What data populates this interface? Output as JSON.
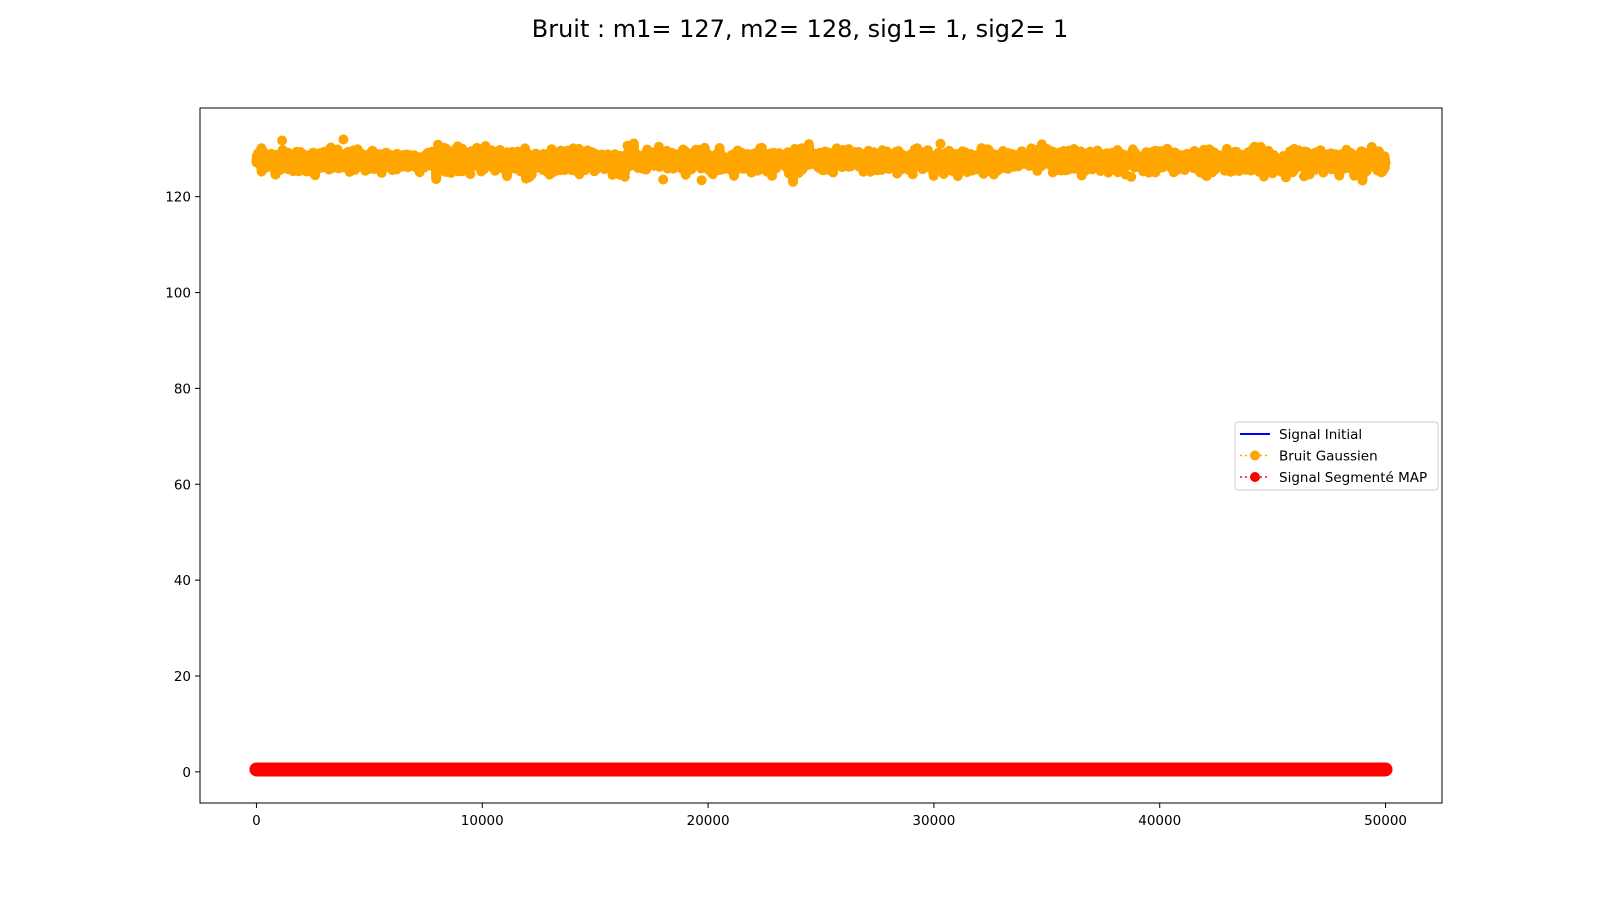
{
  "chart_data": {
    "type": "scatter",
    "title": "Bruit : m1= 127, m2= 128, sig1= 1, sig2= 1",
    "xlabel": "",
    "ylabel": "",
    "xlim": [
      -2500,
      52500
    ],
    "ylim": [
      -6.5,
      138.5
    ],
    "xticks": [
      0,
      10000,
      20000,
      30000,
      40000,
      50000
    ],
    "xtick_labels": [
      "0",
      "10000",
      "20000",
      "30000",
      "40000",
      "50000"
    ],
    "yticks": [
      0,
      20,
      40,
      60,
      80,
      100,
      120
    ],
    "ytick_labels": [
      "0",
      "20",
      "40",
      "60",
      "80",
      "100",
      "120"
    ],
    "grid": false,
    "legend_position": "center-right",
    "series": [
      {
        "name": "Signal Initial",
        "kind": "line",
        "color": "#0000ff",
        "x_range": [
          0,
          50000
        ],
        "value": 0
      },
      {
        "name": "Bruit Gaussien",
        "kind": "dotted-line-markers",
        "color": "#ffa500",
        "x_range": [
          0,
          50000
        ],
        "mean": 127.5,
        "min": 123,
        "max": 132
      },
      {
        "name": "Signal Segmenté MAP",
        "kind": "dotted-line-markers",
        "color": "#ff0000",
        "x_range": [
          0,
          50000
        ],
        "value": 0.5
      }
    ]
  }
}
